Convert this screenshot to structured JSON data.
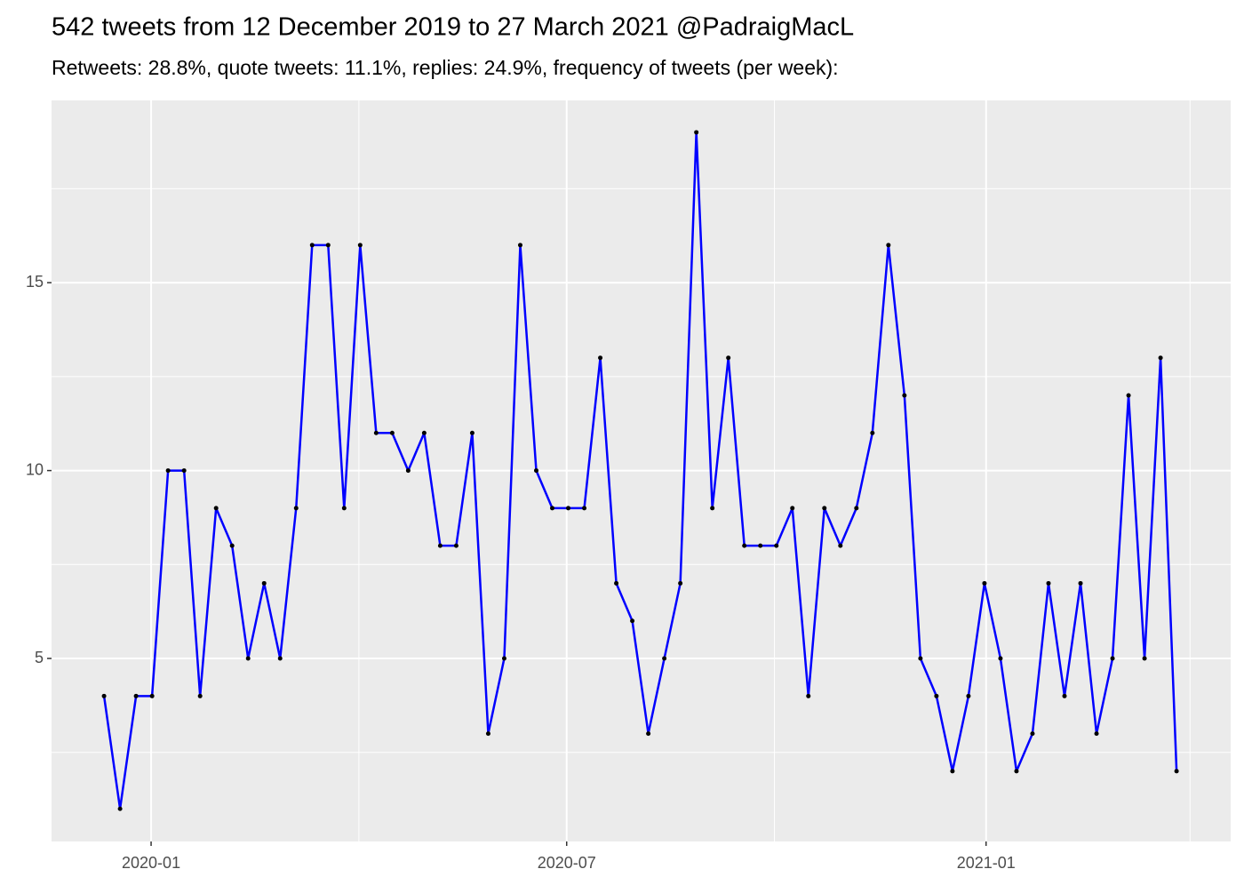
{
  "chart_data": {
    "type": "line",
    "title": "542 tweets from 12 December 2019 to 27 March 2021 @PadraigMacL",
    "subtitle": "Retweets: 28.8%, quote tweets: 11.1%, replies: 24.9%, frequency of tweets (per week):",
    "x": [
      0,
      1,
      2,
      3,
      4,
      5,
      6,
      7,
      8,
      9,
      10,
      11,
      12,
      13,
      14,
      15,
      16,
      17,
      18,
      19,
      20,
      21,
      22,
      23,
      24,
      25,
      26,
      27,
      28,
      29,
      30,
      31,
      32,
      33,
      34,
      35,
      36,
      37,
      38,
      39,
      40,
      41,
      42,
      43,
      44,
      45,
      46,
      47,
      48,
      49,
      50,
      51,
      52,
      53,
      54,
      55,
      56,
      57,
      58,
      59,
      60,
      61,
      62,
      63,
      64,
      65,
      66,
      67
    ],
    "values": [
      4,
      1,
      4,
      4,
      10,
      10,
      4,
      9,
      8,
      5,
      7,
      5,
      9,
      16,
      16,
      9,
      16,
      11,
      11,
      10,
      11,
      8,
      8,
      11,
      3,
      5,
      16,
      10,
      9,
      9,
      9,
      13,
      7,
      6,
      3,
      5,
      7,
      19,
      9,
      13,
      8,
      8,
      8,
      9,
      4,
      9,
      8,
      9,
      11,
      16,
      12,
      5,
      4,
      2,
      4,
      7,
      5,
      2,
      3,
      7,
      4,
      7,
      3,
      5,
      12,
      5,
      13,
      2
    ],
    "color": "#0000ff",
    "point_color": "#000000",
    "xlim": [
      -3.28,
      70.38
    ],
    "xticks": [
      {
        "value": 2.94,
        "label": "2020-01"
      },
      {
        "value": 28.9,
        "label": "2020-07"
      },
      {
        "value": 55.1,
        "label": "2021-01"
      }
    ],
    "ylim": [
      0.13,
      19.85
    ],
    "yticks": [
      5,
      10,
      15
    ],
    "grid": true,
    "minor_grid": true
  }
}
